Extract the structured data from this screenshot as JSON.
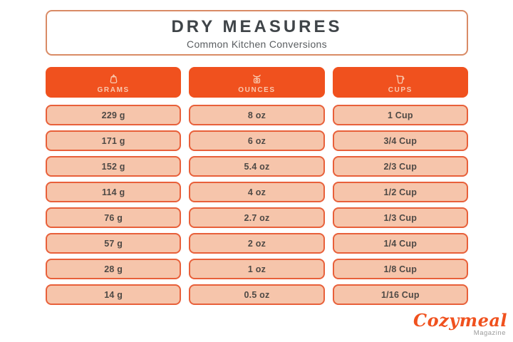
{
  "title": {
    "main": "DRY MEASURES",
    "subtitle": "Common Kitchen Conversions"
  },
  "columns": [
    {
      "label": "GRAMS",
      "icon": "weight-icon"
    },
    {
      "label": "OUNCES",
      "icon": "kitchen-scale-icon"
    },
    {
      "label": "CUPS",
      "icon": "measuring-cup-icon"
    }
  ],
  "chart_data": {
    "type": "table",
    "title": "DRY MEASURES",
    "subtitle": "Common Kitchen Conversions",
    "columns": [
      "GRAMS",
      "OUNCES",
      "CUPS"
    ],
    "rows": [
      [
        "229 g",
        "8 oz",
        "1 Cup"
      ],
      [
        "171 g",
        "6 oz",
        "3/4 Cup"
      ],
      [
        "152 g",
        "5.4 oz",
        "2/3 Cup"
      ],
      [
        "114 g",
        "4 oz",
        "1/2 Cup"
      ],
      [
        "76 g",
        "2.7 oz",
        "1/3 Cup"
      ],
      [
        "57 g",
        "2 oz",
        "1/4 Cup"
      ],
      [
        "28 g",
        "1 oz",
        "1/8 Cup"
      ],
      [
        "14 g",
        "0.5 oz",
        "1/16 Cup"
      ]
    ]
  },
  "branding": {
    "name": "Cozymeal",
    "magazine": "Magazine"
  },
  "colors": {
    "accent_orange": "#F0511E",
    "row_fill": "#F6C5AB",
    "row_border": "#E8603A",
    "title_border": "#D98B66",
    "header_label": "#F9C8AF",
    "title_text": "#3F4448",
    "cell_text": "#4E4945",
    "magazine_gray": "#9B9B9B"
  }
}
